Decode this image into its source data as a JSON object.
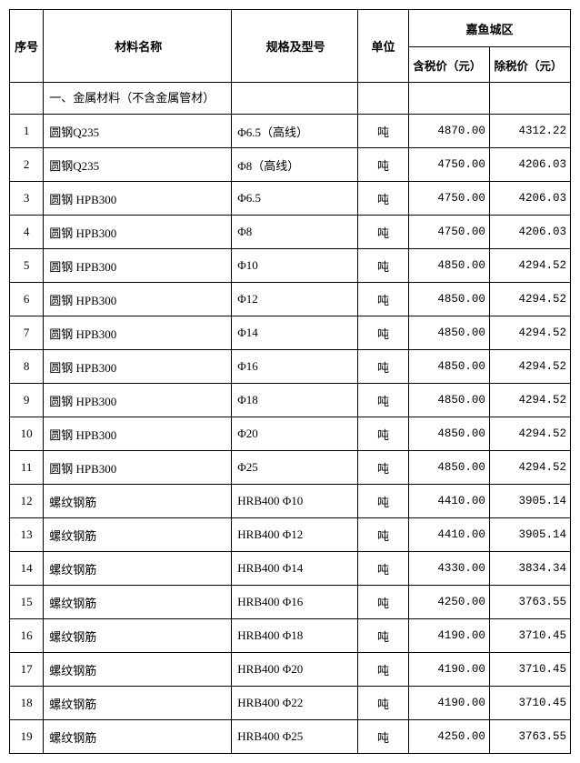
{
  "headers": {
    "seq": "序号",
    "name": "材料名称",
    "spec": "规格及型号",
    "unit": "单位",
    "region": "嘉鱼城区",
    "price_tax": "含税价（元）",
    "price_notax": "除税价（元）"
  },
  "section_title": "一、金属材料（不含金属管材）",
  "rows": [
    {
      "seq": "1",
      "name": "圆钢Q235",
      "spec": "Φ6.5（高线）",
      "unit": "吨",
      "p1": "4870.00",
      "p2": "4312.22"
    },
    {
      "seq": "2",
      "name": "圆钢Q235",
      "spec": "Φ8（高线）",
      "unit": "吨",
      "p1": "4750.00",
      "p2": "4206.03"
    },
    {
      "seq": "3",
      "name": "圆钢 HPB300",
      "spec": "Φ6.5",
      "unit": "吨",
      "p1": "4750.00",
      "p2": "4206.03"
    },
    {
      "seq": "4",
      "name": "圆钢 HPB300",
      "spec": "Φ8",
      "unit": "吨",
      "p1": "4750.00",
      "p2": "4206.03"
    },
    {
      "seq": "5",
      "name": "圆钢 HPB300",
      "spec": "Φ10",
      "unit": "吨",
      "p1": "4850.00",
      "p2": "4294.52"
    },
    {
      "seq": "6",
      "name": "圆钢 HPB300",
      "spec": "Φ12",
      "unit": "吨",
      "p1": "4850.00",
      "p2": "4294.52"
    },
    {
      "seq": "7",
      "name": "圆钢 HPB300",
      "spec": "Φ14",
      "unit": "吨",
      "p1": "4850.00",
      "p2": "4294.52"
    },
    {
      "seq": "8",
      "name": "圆钢 HPB300",
      "spec": "Φ16",
      "unit": "吨",
      "p1": "4850.00",
      "p2": "4294.52"
    },
    {
      "seq": "9",
      "name": "圆钢 HPB300",
      "spec": "Φ18",
      "unit": "吨",
      "p1": "4850.00",
      "p2": "4294.52"
    },
    {
      "seq": "10",
      "name": "圆钢 HPB300",
      "spec": "Φ20",
      "unit": "吨",
      "p1": "4850.00",
      "p2": "4294.52"
    },
    {
      "seq": "11",
      "name": "圆钢 HPB300",
      "spec": "Φ25",
      "unit": "吨",
      "p1": "4850.00",
      "p2": "4294.52"
    },
    {
      "seq": "12",
      "name": "螺纹钢筋",
      "spec": "HRB400 Φ10",
      "unit": "吨",
      "p1": "4410.00",
      "p2": "3905.14"
    },
    {
      "seq": "13",
      "name": "螺纹钢筋",
      "spec": "HRB400 Φ12",
      "unit": "吨",
      "p1": "4410.00",
      "p2": "3905.14"
    },
    {
      "seq": "14",
      "name": "螺纹钢筋",
      "spec": "HRB400 Φ14",
      "unit": "吨",
      "p1": "4330.00",
      "p2": "3834.34"
    },
    {
      "seq": "15",
      "name": "螺纹钢筋",
      "spec": "HRB400 Φ16",
      "unit": "吨",
      "p1": "4250.00",
      "p2": "3763.55"
    },
    {
      "seq": "16",
      "name": "螺纹钢筋",
      "spec": "HRB400 Φ18",
      "unit": "吨",
      "p1": "4190.00",
      "p2": "3710.45"
    },
    {
      "seq": "17",
      "name": "螺纹钢筋",
      "spec": "HRB400 Φ20",
      "unit": "吨",
      "p1": "4190.00",
      "p2": "3710.45"
    },
    {
      "seq": "18",
      "name": "螺纹钢筋",
      "spec": "HRB400 Φ22",
      "unit": "吨",
      "p1": "4190.00",
      "p2": "3710.45"
    },
    {
      "seq": "19",
      "name": "螺纹钢筋",
      "spec": "HRB400 Φ25",
      "unit": "吨",
      "p1": "4250.00",
      "p2": "3763.55"
    }
  ]
}
